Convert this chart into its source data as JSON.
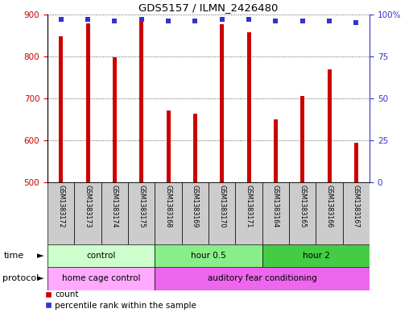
{
  "title": "GDS5157 / ILMN_2426480",
  "samples": [
    "GSM1383172",
    "GSM1383173",
    "GSM1383174",
    "GSM1383175",
    "GSM1383168",
    "GSM1383169",
    "GSM1383170",
    "GSM1383171",
    "GSM1383164",
    "GSM1383165",
    "GSM1383166",
    "GSM1383167"
  ],
  "counts": [
    848,
    878,
    797,
    884,
    672,
    663,
    877,
    857,
    651,
    706,
    769,
    594
  ],
  "percentiles": [
    97,
    97,
    96,
    97,
    96,
    96,
    97,
    97,
    96,
    96,
    96,
    95
  ],
  "ylim_left": [
    500,
    900
  ],
  "ylim_right": [
    0,
    100
  ],
  "yticks_left": [
    500,
    600,
    700,
    800,
    900
  ],
  "yticks_right": [
    0,
    25,
    50,
    75,
    100
  ],
  "bar_color": "#cc0000",
  "dot_color": "#3333cc",
  "time_groups": [
    {
      "label": "control",
      "start": 0,
      "end": 4,
      "color": "#ccffcc"
    },
    {
      "label": "hour 0.5",
      "start": 4,
      "end": 8,
      "color": "#88ee88"
    },
    {
      "label": "hour 2",
      "start": 8,
      "end": 12,
      "color": "#44cc44"
    }
  ],
  "protocol_groups": [
    {
      "label": "home cage control",
      "start": 0,
      "end": 4,
      "color": "#ffaaff"
    },
    {
      "label": "auditory fear conditioning",
      "start": 4,
      "end": 12,
      "color": "#ee66ee"
    }
  ],
  "time_label": "time",
  "protocol_label": "protocol",
  "legend_count_label": "count",
  "legend_percentile_label": "percentile rank within the sample",
  "background_color": "#ffffff",
  "grid_color": "#000000",
  "left_axis_color": "#cc0000",
  "right_axis_color": "#3333cc",
  "sample_box_color": "#cccccc",
  "bar_width": 0.15
}
